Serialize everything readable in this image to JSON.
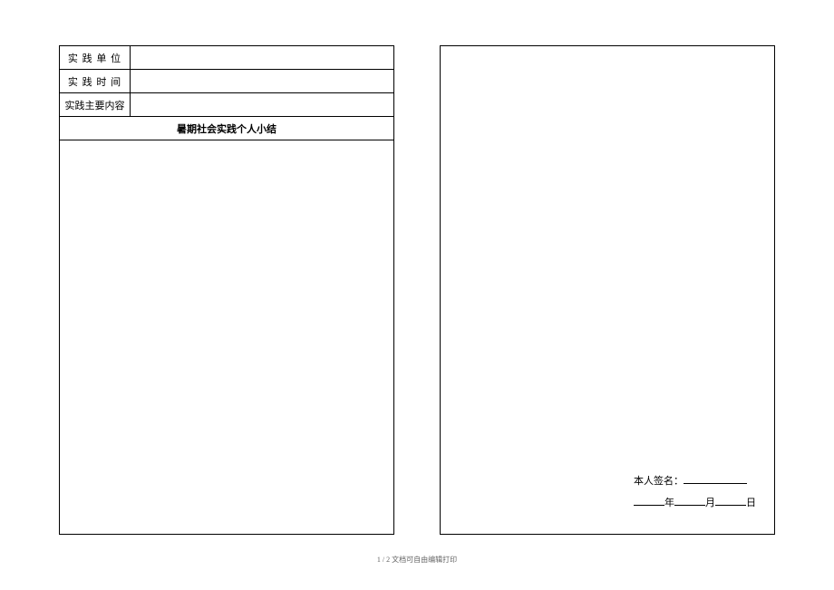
{
  "left_page": {
    "rows": [
      {
        "label": "实 践 单 位",
        "value": ""
      },
      {
        "label": "实 践 时 间",
        "value": ""
      },
      {
        "label": "实践主要内容",
        "value": ""
      }
    ],
    "section_title": "暑期社会实践个人小结"
  },
  "right_page": {
    "signature_label": "本人签名：",
    "date_year_suffix": "年",
    "date_month_suffix": "月",
    "date_day_suffix": "日"
  },
  "footer": "1 / 2 文档可自由编辑打印",
  "colors": {
    "border": "#000000",
    "background": "#ffffff",
    "footer_text": "#666666"
  }
}
